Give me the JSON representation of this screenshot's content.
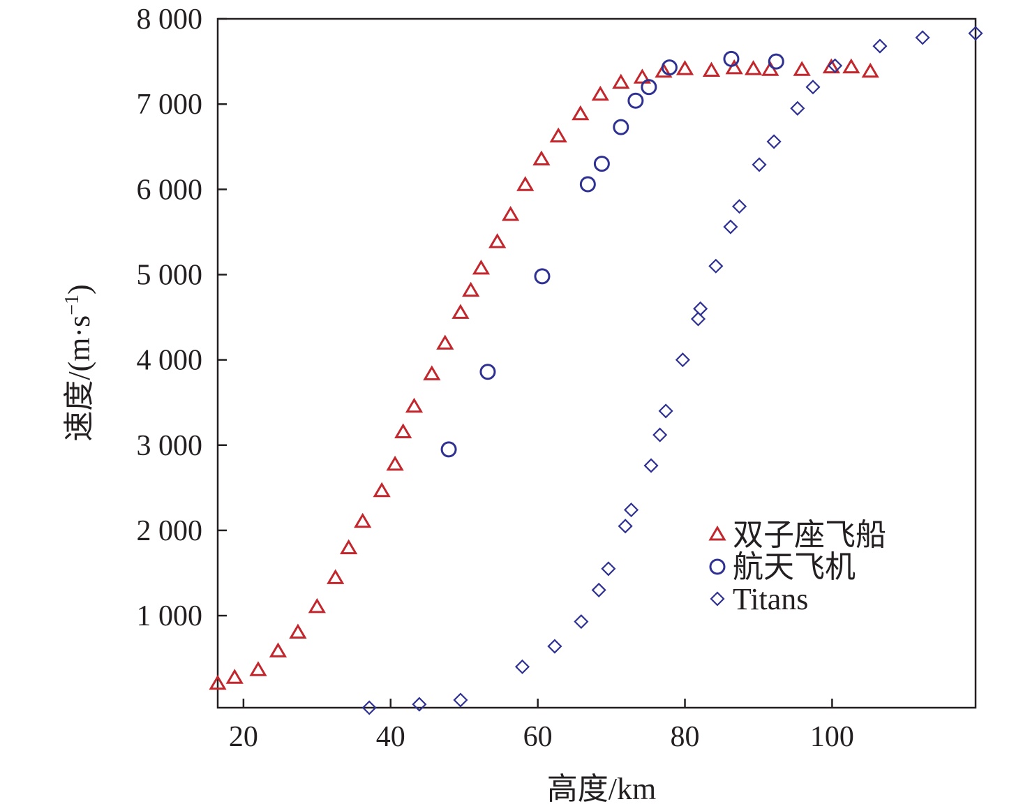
{
  "chart_data": {
    "type": "scatter",
    "title": "",
    "xlabel": "高度/km",
    "ylabel": "速度/(m·s",
    "ylabel_sup": "−1",
    "ylabel_close": ")",
    "xlim": [
      16.5,
      119.5
    ],
    "ylim": [
      -80,
      8000
    ],
    "xticks": [
      20,
      40,
      60,
      80,
      100
    ],
    "xtick_labels": [
      "20",
      "40",
      "60",
      "80",
      "100"
    ],
    "yticks": [
      1000,
      2000,
      3000,
      4000,
      5000,
      6000,
      7000,
      8000
    ],
    "ytick_labels": [
      "1 000",
      "2 000",
      "3 000",
      "4 000",
      "5 000",
      "6 000",
      "7 000",
      "8 000"
    ],
    "grid": false,
    "legend_position": "center-right",
    "series": [
      {
        "name": "双子座飞船",
        "marker": "triangle",
        "color": "#c1272d",
        "x": [
          16.5,
          18.8,
          22.0,
          24.7,
          27.4,
          30.0,
          32.5,
          34.3,
          36.2,
          38.8,
          40.6,
          41.7,
          43.2,
          45.6,
          47.4,
          49.5,
          50.9,
          52.3,
          54.5,
          56.3,
          58.3,
          60.5,
          62.8,
          65.8,
          68.5,
          71.3,
          74.2,
          77.1,
          80.0,
          83.6,
          86.7,
          89.3,
          91.6,
          95.9,
          99.9,
          102.6,
          105.2
        ],
        "y": [
          200,
          270,
          360,
          580,
          800,
          1100,
          1440,
          1790,
          2100,
          2460,
          2770,
          3150,
          3450,
          3830,
          4190,
          4550,
          4810,
          5070,
          5380,
          5700,
          6050,
          6350,
          6620,
          6880,
          7110,
          7250,
          7310,
          7380,
          7410,
          7390,
          7420,
          7410,
          7400,
          7400,
          7430,
          7430,
          7380
        ]
      },
      {
        "name": "航天飞机",
        "marker": "circle",
        "color": "#2e3192",
        "x": [
          47.9,
          53.2,
          60.6,
          66.8,
          68.7,
          71.3,
          73.3,
          75.1,
          77.9,
          86.3,
          92.4
        ],
        "y": [
          2950,
          3860,
          4980,
          6060,
          6300,
          6730,
          7040,
          7200,
          7430,
          7530,
          7500
        ]
      },
      {
        "name": "Titans",
        "marker": "diamond",
        "color": "#2e3192",
        "x": [
          37.1,
          43.9,
          49.5,
          57.9,
          62.3,
          65.9,
          68.3,
          69.6,
          71.9,
          72.7,
          75.4,
          76.6,
          77.4,
          79.7,
          81.8,
          82.1,
          84.2,
          86.2,
          87.4,
          90.1,
          92.1,
          95.3,
          97.4,
          100.4,
          106.5,
          112.3,
          119.5
        ],
        "y": [
          -80,
          -40,
          10,
          400,
          640,
          930,
          1300,
          1550,
          2050,
          2240,
          2760,
          3120,
          3400,
          4000,
          4480,
          4600,
          5100,
          5560,
          5800,
          6290,
          6560,
          6950,
          7200,
          7450,
          7680,
          7780,
          7830
        ]
      }
    ]
  }
}
